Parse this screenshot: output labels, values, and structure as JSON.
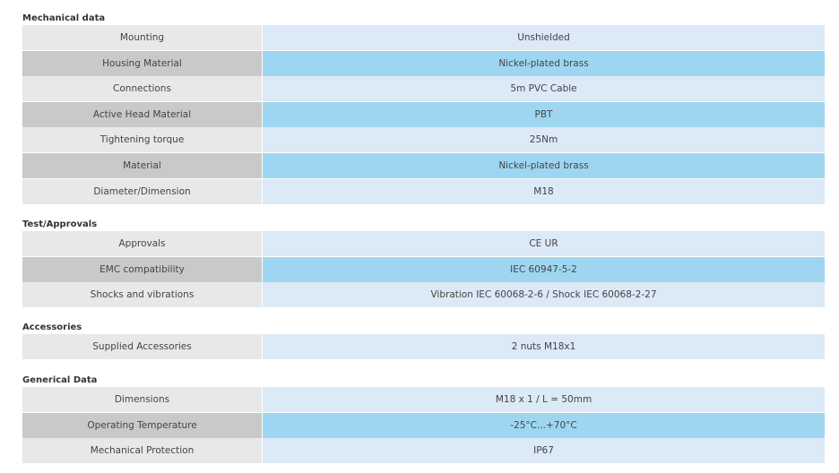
{
  "sections": [
    {
      "title": "Mechanical data",
      "rows": [
        {
          "label": "Mounting",
          "value": "Unshielded"
        },
        {
          "label": "Housing Material",
          "value": "Nickel-plated brass"
        },
        {
          "label": "Connections",
          "value": "5m PVC Cable"
        },
        {
          "label": "Active Head Material",
          "value": "PBT"
        },
        {
          "label": "Tightening torque",
          "value": "25Nm"
        },
        {
          "label": "Material",
          "value": "Nickel-plated brass"
        },
        {
          "label": "Diameter/Dimension",
          "value": "M18"
        }
      ]
    },
    {
      "title": "Test/Approvals",
      "rows": [
        {
          "label": "Approvals",
          "value": "CE UR"
        },
        {
          "label": "EMC compatibility",
          "value": "IEC 60947-5-2"
        },
        {
          "label": "Shocks and vibrations",
          "value": "Vibration IEC 60068-2-6 / Shock IEC 60068-2-27"
        }
      ]
    },
    {
      "title": "Accessories",
      "rows": [
        {
          "label": "Supplied Accessories",
          "value": "2 nuts M18x1"
        }
      ]
    },
    {
      "title": "Generical Data",
      "rows": [
        {
          "label": "Dimensions",
          "value": "M18 x 1 / L = 50mm"
        },
        {
          "label": "Operating Temperature",
          "value": "-25°C...+70°C"
        },
        {
          "label": "Mechanical Protection",
          "value": "IP67"
        }
      ]
    }
  ],
  "colors": {
    "label_light": "#e8e8e8",
    "label_dark": "#c9c9c9",
    "value_light": "#dce9f6",
    "value_dark": "#9ed6f1"
  }
}
